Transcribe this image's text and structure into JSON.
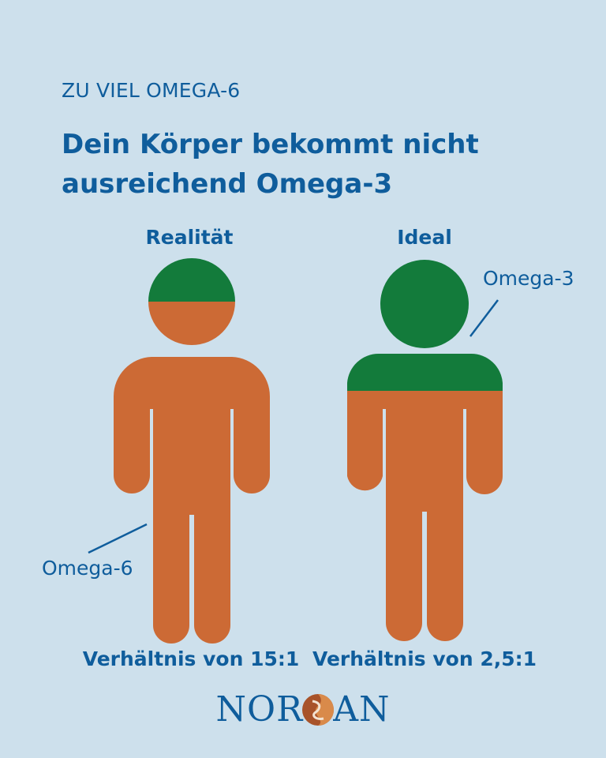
{
  "header": {
    "eyebrow": "ZU VIEL OMEGA-6",
    "title": "Dein Körper bekommt nicht ausreichend Omega-3"
  },
  "figures": [
    {
      "label": "Realität",
      "ratio_text": "Verhältnis von 15:1"
    },
    {
      "label": "Ideal",
      "ratio_text": "Verhältnis von 2,5:1"
    }
  ],
  "callouts": {
    "omega3": "Omega-3",
    "omega6": "Omega-6"
  },
  "colors": {
    "omega3": "#137b3b",
    "omega6": "#cc6a35",
    "text": "#0f5d9c",
    "background": "#cde0ec"
  },
  "logo": {
    "left": "NOR",
    "right": "AN"
  }
}
